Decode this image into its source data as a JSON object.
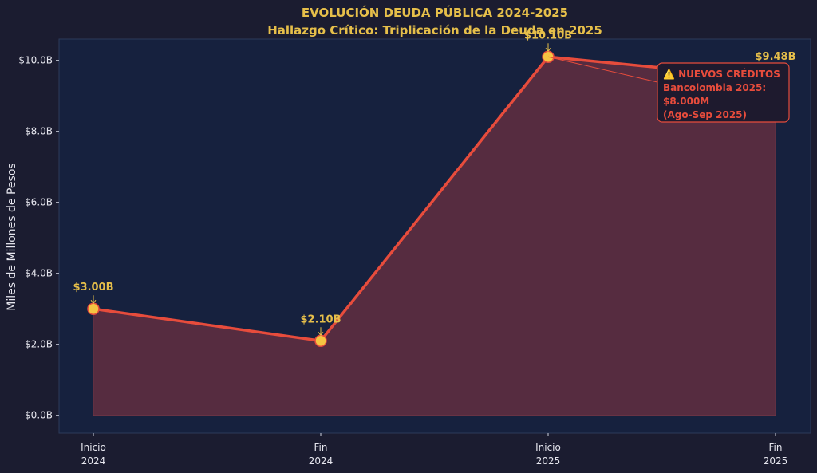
{
  "chart_data": {
    "type": "area",
    "title": "EVOLUCIÓN DEUDA PÚBLICA 2024-2025",
    "subtitle": "Hallazgo Crítico: Triplicación de la Deuda en 2025",
    "ylabel": "Miles de Millones de Pesos",
    "xlabel": "",
    "categories": [
      [
        "Inicio",
        "2024"
      ],
      [
        "Fin",
        "2024"
      ],
      [
        "Inicio",
        "2025"
      ],
      [
        "Fin",
        "2025"
      ]
    ],
    "values": [
      3.0,
      2.1,
      10.1,
      9.48
    ],
    "data_labels": [
      "$3.00B",
      "$2.10B",
      "$10.10B",
      "$9.48B"
    ],
    "ylim": [
      -0.5,
      10.6
    ],
    "yticks": [
      0,
      2,
      4,
      6,
      8,
      10
    ],
    "ytick_labels": [
      "$0.0B",
      "$2.0B",
      "$4.0B",
      "$6.0B",
      "$8.0B",
      "$10.0B"
    ],
    "grid": false,
    "annotation": {
      "lines": [
        "⚠️ NUEVOS CRÉDITOS",
        "Bancolombia 2025:",
        "$8.000M",
        "(Ago-Sep 2025)"
      ]
    },
    "colors": {
      "background": "#1b1c30",
      "plot_area": "#16213e",
      "line": "#e74c3c",
      "fill": "#5a2d40",
      "marker": "#f5c542",
      "label": "#e6bf4a",
      "text": "#e6e6ee"
    }
  }
}
